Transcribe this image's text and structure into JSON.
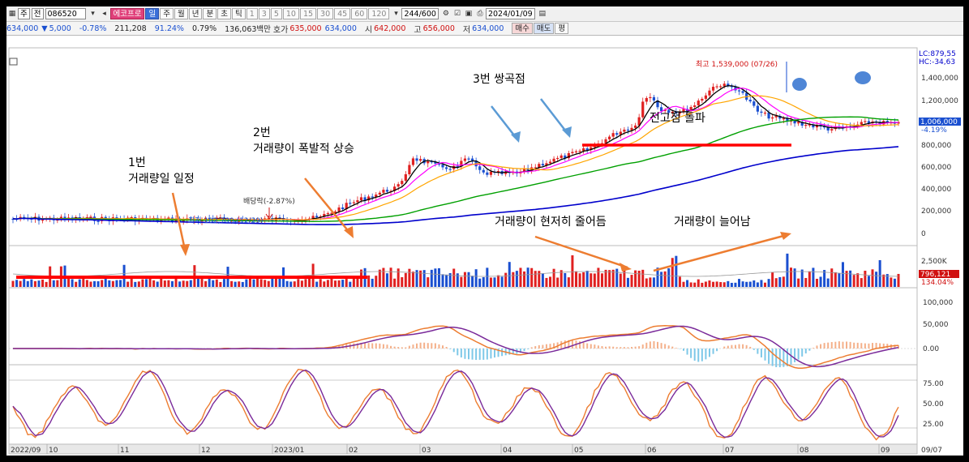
{
  "toolbar": {
    "code": "086520",
    "dropdown_a": "주",
    "dropdown_b": "전",
    "name": "에코프로",
    "periods": [
      "일",
      "주",
      "월",
      "년",
      "분",
      "초",
      "틱"
    ],
    "minutes": [
      "1",
      "3",
      "5",
      "10",
      "15",
      "30",
      "45",
      "60",
      "120"
    ],
    "count": "244/600",
    "date": "2024/01/09"
  },
  "quote": {
    "price": "634,000",
    "change_symbol": "▼",
    "change": "5,000",
    "change_pct": "-0.78%",
    "volume": "211,208",
    "ratio": "91.24%",
    "turnover": "0.79%",
    "amount": "136,063백만",
    "label_hoga": "호가",
    "ask": "635,000",
    "bid": "634,000",
    "label_open": "시",
    "open": "642,000",
    "label_high": "고",
    "high": "656,000",
    "label_low": "저",
    "low": "634,000",
    "buy_label": "매수",
    "sell_label": "매도",
    "flat_label": "평"
  },
  "price_panel": {
    "lc_label": "LC:879,55",
    "hc_label": "HC:-34,63",
    "y_ticks": [
      "1,400,000",
      "1,200,000",
      "1,006,000",
      "-4.19%",
      "800,000",
      "600,000",
      "400,000",
      "200,000",
      "0"
    ],
    "high_note": "최고 1,539,000 (07/26)",
    "low_note": "최저 102,700 (12/29)",
    "dividend_note": "배당락(-2.87%)"
  },
  "volume_panel": {
    "y_ticks": [
      "2,500K",
      "796,121",
      "134.04%"
    ]
  },
  "macd_panel": {
    "y_ticks": [
      "100,000",
      "50,000",
      "0.00"
    ]
  },
  "stoch_panel": {
    "y_ticks": [
      "75.00",
      "50.00",
      "25.00"
    ]
  },
  "x_axis": [
    "2022/09",
    "10",
    "11",
    "12",
    "2023/01",
    "02",
    "03",
    "04",
    "05",
    "06",
    "07",
    "08",
    "09",
    "09/07"
  ],
  "annotations": {
    "a1_line1": "1번",
    "a1_line2": "거래량일 일정",
    "a2_line1": "2번",
    "a2_line2": "거래량이 폭발적 상승",
    "a3": "3번 쌍곡점",
    "a4": "전고점 돌파",
    "a5": "거래량이 현저히 줄어듬",
    "a6": "거래량이 늘어남"
  },
  "colors": {
    "up": "#e02020",
    "down": "#1a4fd0",
    "arrow_blue": "#5b9bd5",
    "arrow_orange": "#ed7d31",
    "ma5": "#000000",
    "ma10": "#ff00ff",
    "ma20": "#ffa500",
    "ma60": "#00a000",
    "ma120": "#0000cc"
  }
}
